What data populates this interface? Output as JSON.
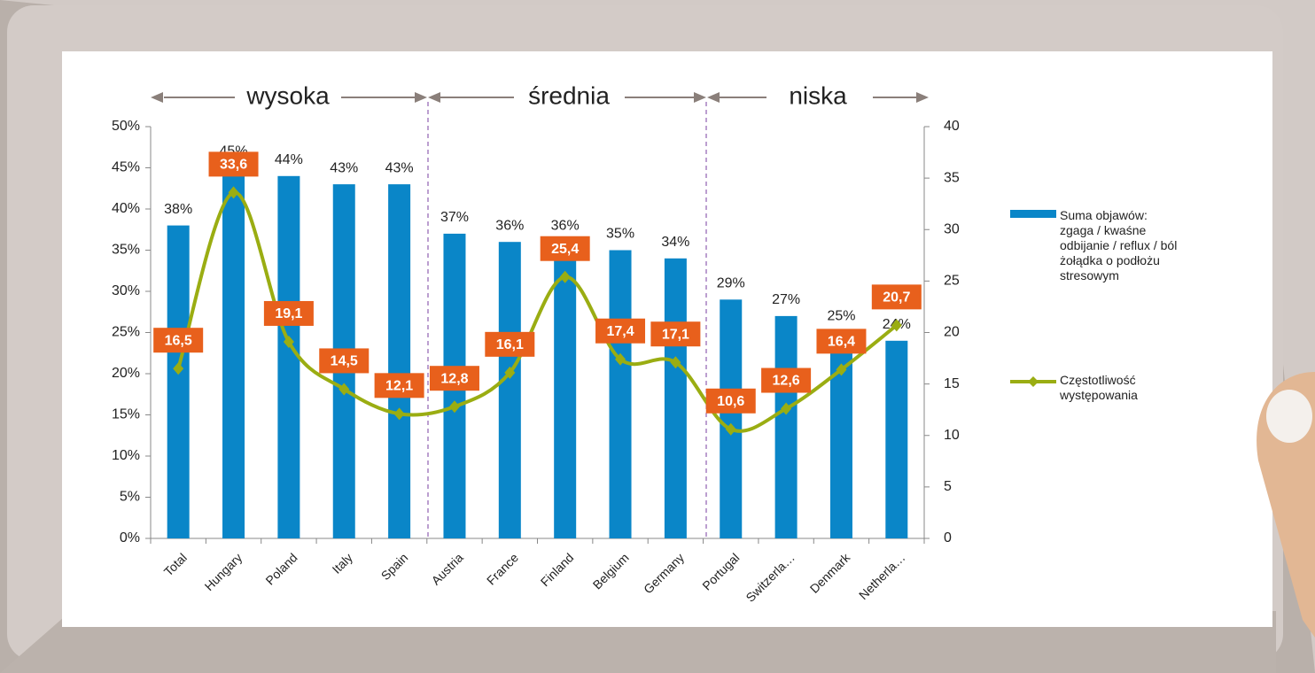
{
  "chart_data": {
    "type": "bar_line",
    "categories": [
      "Total",
      "Hungary",
      "Poland",
      "Italy",
      "Spain",
      "Austria",
      "France",
      "Finland",
      "Belgium",
      "Germany",
      "Portugal",
      "Switzerla…",
      "Denmark",
      "Netherla…"
    ],
    "group_labels": [
      "wysoka",
      "średnia",
      "niska"
    ],
    "series": [
      {
        "name": "Suma objawów: zgaga / kwaśne odbijanie / reflux / ból żołądka o podłożu stresowym",
        "color": "#0a86c8",
        "values": [
          38,
          45,
          44,
          43,
          43,
          37,
          36,
          36,
          35,
          34,
          29,
          27,
          25,
          24
        ],
        "value_labels": [
          "38%",
          "45%",
          "44%",
          "43%",
          "43%",
          "37%",
          "36%",
          "36%",
          "35%",
          "34%",
          "29%",
          "27%",
          "25%",
          "24%"
        ]
      },
      {
        "name": "Częstotliwość występowania",
        "color": "#9aad12",
        "axis": "y2",
        "values": [
          16.5,
          33.6,
          19.1,
          14.5,
          12.1,
          12.8,
          16.1,
          25.4,
          17.4,
          17.1,
          10.6,
          12.6,
          16.4,
          20.7
        ],
        "value_labels": [
          "16,5",
          "33,6",
          "19,1",
          "14,5",
          "12,1",
          "12,8",
          "16,1",
          "25,4",
          "17,4",
          "17,1",
          "10,6",
          "12,6",
          "16,4",
          "20,7"
        ],
        "label_color": "#e8601c"
      }
    ],
    "ylim": [
      0,
      50
    ],
    "yticks": [
      {
        "value": 0,
        "label": "0%"
      },
      {
        "value": 5,
        "label": "5%"
      },
      {
        "value": 10,
        "label": "10%"
      },
      {
        "value": 15,
        "label": "15%"
      },
      {
        "value": 20,
        "label": "20%"
      },
      {
        "value": 25,
        "label": "25%"
      },
      {
        "value": 30,
        "label": "30%"
      },
      {
        "value": 35,
        "label": "35%"
      },
      {
        "value": 40,
        "label": "40%"
      },
      {
        "value": 45,
        "label": "45%"
      },
      {
        "value": 50,
        "label": "50%"
      }
    ],
    "y2lim": [
      0,
      40
    ],
    "y2ticks": [
      0,
      5,
      10,
      15,
      20,
      25,
      30,
      35,
      40
    ],
    "grid": false
  }
}
